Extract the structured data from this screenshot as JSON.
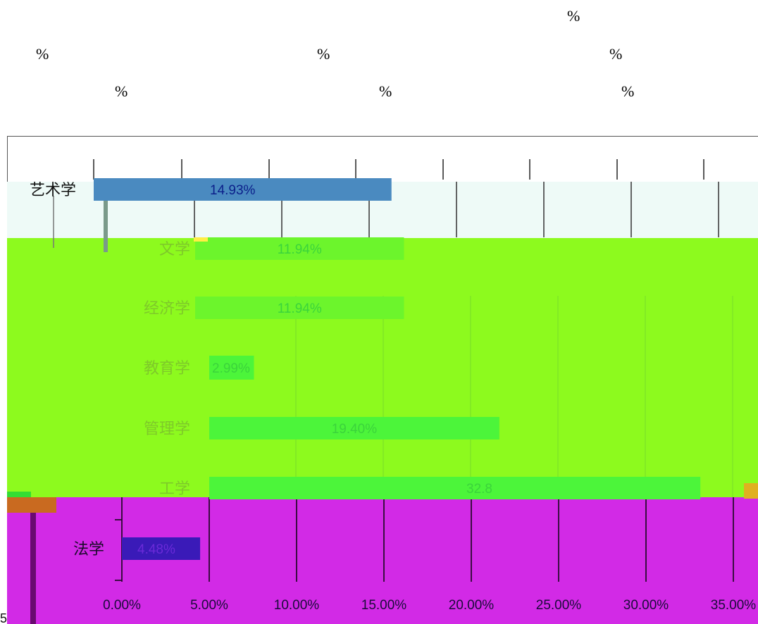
{
  "percent_signs": [
    "%",
    "%",
    "%",
    "%",
    "%",
    "%",
    "%"
  ],
  "chart_data": {
    "type": "bar",
    "orientation": "horizontal",
    "categories": [
      "艺术学",
      "文学",
      "经济学",
      "教育学",
      "管理学",
      "工学",
      "法学"
    ],
    "values": [
      14.93,
      11.94,
      11.94,
      2.99,
      19.4,
      32.84,
      4.48
    ],
    "data_labels": [
      "14.93%",
      "11.94%",
      "11.94%",
      "2.99%",
      "19.40%",
      "32.8",
      "4.48%"
    ],
    "x_ticks": [
      "0.00%",
      "5.00%",
      "10.00%",
      "15.00%",
      "20.00%",
      "25.00%",
      "30.00%",
      "35.00%"
    ],
    "xlim": [
      0,
      35
    ],
    "grid": true,
    "stray_text": "5"
  }
}
